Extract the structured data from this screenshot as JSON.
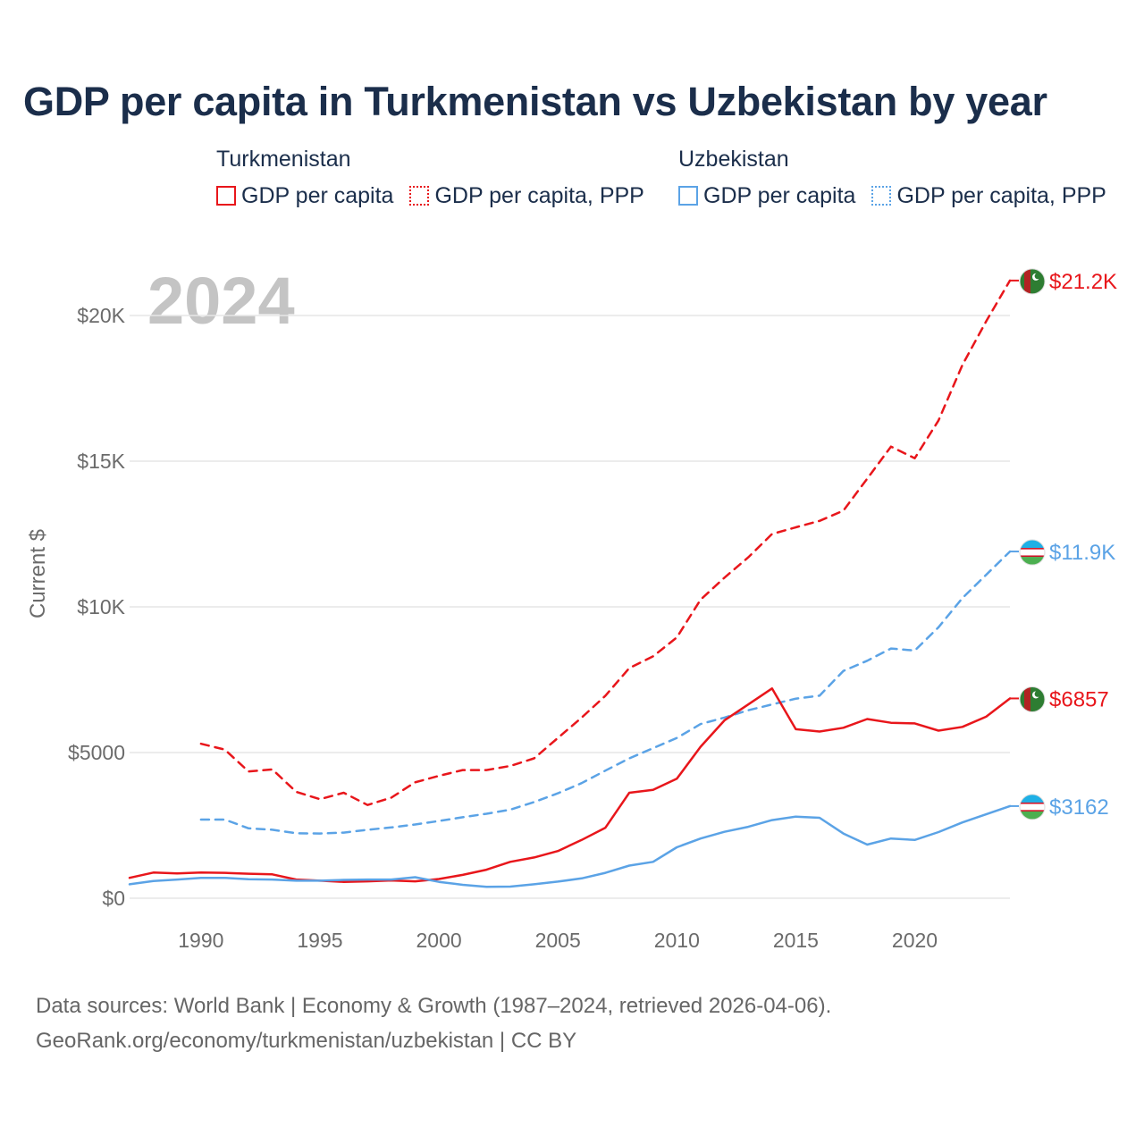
{
  "title": "GDP per capita in Turkmenistan vs Uzbekistan by year",
  "legend": {
    "turkmenistan": {
      "country": "Turkmenistan",
      "items": [
        {
          "label": "GDP per capita",
          "style": "solid",
          "color": "#e8161b"
        },
        {
          "label": "GDP per capita, PPP",
          "style": "dotted",
          "color": "#e8161b"
        }
      ]
    },
    "uzbekistan": {
      "country": "Uzbekistan",
      "items": [
        {
          "label": "GDP per capita",
          "style": "solid",
          "color": "#5ba3e6"
        },
        {
          "label": "GDP per capita, PPP",
          "style": "dotted",
          "color": "#5ba3e6"
        }
      ]
    }
  },
  "year_watermark": "2024",
  "footer": {
    "line1": "Data sources: World Bank | Economy & Growth (1987–2024, retrieved 2026-04-06).",
    "line2": "GeoRank.org/economy/turkmenistan/uzbekistan | CC BY"
  },
  "colors": {
    "turkmenistan": "#e8161b",
    "uzbekistan": "#5ba3e6",
    "grid": "#e6e6e6",
    "axis_text": "#6b6b6b",
    "title": "#1b2e4b",
    "watermark": "#c4c4c4"
  },
  "icons": {
    "turkmenistan_flag": "turkmenistan-flag-icon",
    "uzbekistan_flag": "uzbekistan-flag-icon"
  },
  "chart_data": {
    "type": "line",
    "title": "GDP per capita in Turkmenistan vs Uzbekistan by year",
    "xlabel": "",
    "ylabel": "Current $",
    "xlim": [
      1987,
      2024
    ],
    "ylim": [
      0,
      20000
    ],
    "grid": true,
    "x_ticks": [
      1990,
      1995,
      2000,
      2005,
      2010,
      2015,
      2020
    ],
    "x_tick_labels": [
      "1990",
      "1995",
      "2000",
      "2005",
      "2010",
      "2015",
      "2020"
    ],
    "y_ticks": [
      0,
      5000,
      10000,
      15000,
      20000
    ],
    "y_tick_labels": [
      "$0",
      "$5000",
      "$10K",
      "$15K",
      "$20K"
    ],
    "series": [
      {
        "name": "Turkmenistan GDP per capita, PPP",
        "country": "Turkmenistan",
        "style": "dashed",
        "color": "#e8161b",
        "end_label": "$21.2K",
        "x": [
          1990,
          1991,
          1992,
          1993,
          1994,
          1995,
          1996,
          1997,
          1998,
          1999,
          2000,
          2001,
          2002,
          2003,
          2004,
          2005,
          2006,
          2007,
          2008,
          2009,
          2010,
          2011,
          2012,
          2013,
          2014,
          2015,
          2016,
          2017,
          2018,
          2019,
          2020,
          2021,
          2022,
          2023,
          2024
        ],
        "values": [
          5300,
          5100,
          4350,
          4420,
          3650,
          3400,
          3620,
          3200,
          3450,
          3980,
          4200,
          4400,
          4400,
          4540,
          4800,
          5500,
          6200,
          6950,
          7900,
          8300,
          8950,
          10250,
          11000,
          11700,
          12500,
          12730,
          12950,
          13300,
          14400,
          15500,
          15100,
          16400,
          18300,
          19800,
          21200
        ]
      },
      {
        "name": "Uzbekistan GDP per capita, PPP",
        "country": "Uzbekistan",
        "style": "dashed",
        "color": "#5ba3e6",
        "end_label": "$11.9K",
        "x": [
          1990,
          1991,
          1992,
          1993,
          1994,
          1995,
          1996,
          1997,
          1998,
          1999,
          2000,
          2001,
          2002,
          2003,
          2004,
          2005,
          2006,
          2007,
          2008,
          2009,
          2010,
          2011,
          2012,
          2013,
          2014,
          2015,
          2016,
          2017,
          2018,
          2019,
          2020,
          2021,
          2022,
          2023,
          2024
        ],
        "values": [
          2700,
          2700,
          2400,
          2350,
          2230,
          2220,
          2250,
          2350,
          2430,
          2530,
          2650,
          2780,
          2900,
          3040,
          3300,
          3600,
          3950,
          4380,
          4800,
          5150,
          5500,
          5980,
          6200,
          6450,
          6650,
          6850,
          6950,
          7800,
          8150,
          8570,
          8500,
          9300,
          10300,
          11100,
          11900
        ]
      },
      {
        "name": "Turkmenistan GDP per capita",
        "country": "Turkmenistan",
        "style": "solid",
        "color": "#e8161b",
        "end_label": "$6857",
        "x": [
          1987,
          1988,
          1989,
          1990,
          1991,
          1992,
          1993,
          1994,
          1995,
          1996,
          1997,
          1998,
          1999,
          2000,
          2001,
          2002,
          2003,
          2004,
          2005,
          2006,
          2007,
          2008,
          2009,
          2010,
          2011,
          2012,
          2013,
          2014,
          2015,
          2016,
          2017,
          2018,
          2019,
          2020,
          2021,
          2022,
          2023,
          2024
        ],
        "values": [
          700,
          880,
          850,
          880,
          870,
          840,
          820,
          640,
          600,
          560,
          580,
          610,
          580,
          660,
          800,
          980,
          1250,
          1400,
          1620,
          2000,
          2420,
          3620,
          3720,
          4100,
          5200,
          6100,
          6650,
          7200,
          5800,
          5720,
          5850,
          6150,
          6020,
          6000,
          5750,
          5880,
          6230,
          6857
        ]
      },
      {
        "name": "Uzbekistan GDP per capita",
        "country": "Uzbekistan",
        "style": "solid",
        "color": "#5ba3e6",
        "end_label": "$3162",
        "x": [
          1987,
          1988,
          1989,
          1990,
          1991,
          1992,
          1993,
          1994,
          1995,
          1996,
          1997,
          1998,
          1999,
          2000,
          2001,
          2002,
          2003,
          2004,
          2005,
          2006,
          2007,
          2008,
          2009,
          2010,
          2011,
          2012,
          2013,
          2014,
          2015,
          2016,
          2017,
          2018,
          2019,
          2020,
          2021,
          2022,
          2023,
          2024
        ],
        "values": [
          480,
          590,
          640,
          700,
          700,
          650,
          640,
          600,
          600,
          630,
          640,
          640,
          720,
          560,
          460,
          390,
          400,
          480,
          570,
          680,
          870,
          1120,
          1250,
          1750,
          2050,
          2280,
          2450,
          2680,
          2800,
          2760,
          2220,
          1840,
          2050,
          2000,
          2270,
          2600,
          2880,
          3162
        ]
      }
    ]
  }
}
